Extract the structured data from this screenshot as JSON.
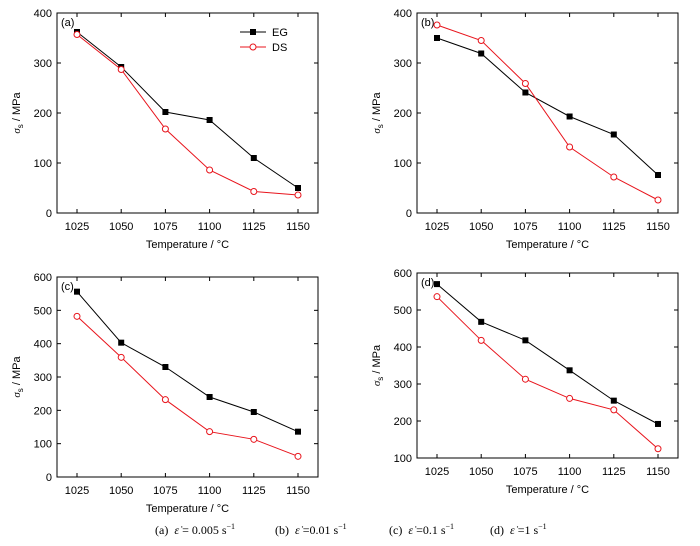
{
  "chart_data": [
    {
      "type": "line",
      "panel_label": "(a)",
      "x": [
        1025,
        1050,
        1075,
        1100,
        1125,
        1150
      ],
      "xlabel": "Temperature / °C",
      "ylabel_symbol": "σ",
      "ylabel_sub": "s",
      "ylabel_rest": " / MPa",
      "ylim": [
        0,
        400
      ],
      "yticks": [
        0,
        100,
        200,
        300,
        400
      ],
      "legend": "top-right",
      "series": [
        {
          "name": "EG",
          "color": "#000000",
          "marker": "filled-square",
          "values": [
            362,
            292,
            202,
            186,
            110,
            50
          ]
        },
        {
          "name": "DS",
          "color": "#e8141c",
          "marker": "open-circle",
          "values": [
            357,
            287,
            168,
            86,
            43,
            36
          ]
        }
      ]
    },
    {
      "type": "line",
      "panel_label": "(b)",
      "x": [
        1025,
        1050,
        1075,
        1100,
        1125,
        1150
      ],
      "xlabel": "Temperature / °C",
      "ylabel_symbol": "σ",
      "ylabel_sub": "s",
      "ylabel_rest": " / MPa",
      "ylim": [
        0,
        400
      ],
      "yticks": [
        0,
        100,
        200,
        300,
        400
      ],
      "series": [
        {
          "name": "EG",
          "color": "#000000",
          "marker": "filled-square",
          "values": [
            350,
            319,
            241,
            193,
            157,
            76
          ]
        },
        {
          "name": "DS",
          "color": "#e8141c",
          "marker": "open-circle",
          "values": [
            376,
            345,
            259,
            132,
            72,
            26
          ]
        }
      ]
    },
    {
      "type": "line",
      "panel_label": "(c)",
      "x": [
        1025,
        1050,
        1075,
        1100,
        1125,
        1150
      ],
      "xlabel": "Temperature / °C",
      "ylabel_symbol": "σ",
      "ylabel_sub": "s",
      "ylabel_rest": " / MPa",
      "ylim": [
        0,
        600
      ],
      "yticks": [
        0,
        100,
        200,
        300,
        400,
        500,
        600
      ],
      "series": [
        {
          "name": "EG",
          "color": "#000000",
          "marker": "filled-square",
          "values": [
            556,
            403,
            330,
            240,
            195,
            136
          ]
        },
        {
          "name": "DS",
          "color": "#e8141c",
          "marker": "open-circle",
          "values": [
            482,
            359,
            232,
            136,
            113,
            62
          ]
        }
      ]
    },
    {
      "type": "line",
      "panel_label": "(d)",
      "x": [
        1025,
        1050,
        1075,
        1100,
        1125,
        1150
      ],
      "xlabel": "Temperature / °C",
      "ylabel_symbol": "σ",
      "ylabel_sub": "s",
      "ylabel_rest": " / MPa",
      "ylim": [
        100,
        600
      ],
      "yticks": [
        100,
        200,
        300,
        400,
        500,
        600
      ],
      "series": [
        {
          "name": "EG",
          "color": "#000000",
          "marker": "filled-square",
          "values": [
            570,
            468,
            418,
            337,
            255,
            192
          ]
        },
        {
          "name": "DS",
          "color": "#e8141c",
          "marker": "open-circle",
          "values": [
            536,
            418,
            313,
            261,
            230,
            125
          ]
        }
      ]
    }
  ],
  "caption": [
    {
      "label": "(a)",
      "value": "= 0.005 s",
      "exp": "−1"
    },
    {
      "label": "(b)",
      "value": "=0.01 s",
      "exp": "−1"
    },
    {
      "label": "(c)",
      "value": "=0.1 s",
      "exp": "−1"
    },
    {
      "label": "(d)",
      "value": "=1 s",
      "exp": "−1"
    }
  ]
}
